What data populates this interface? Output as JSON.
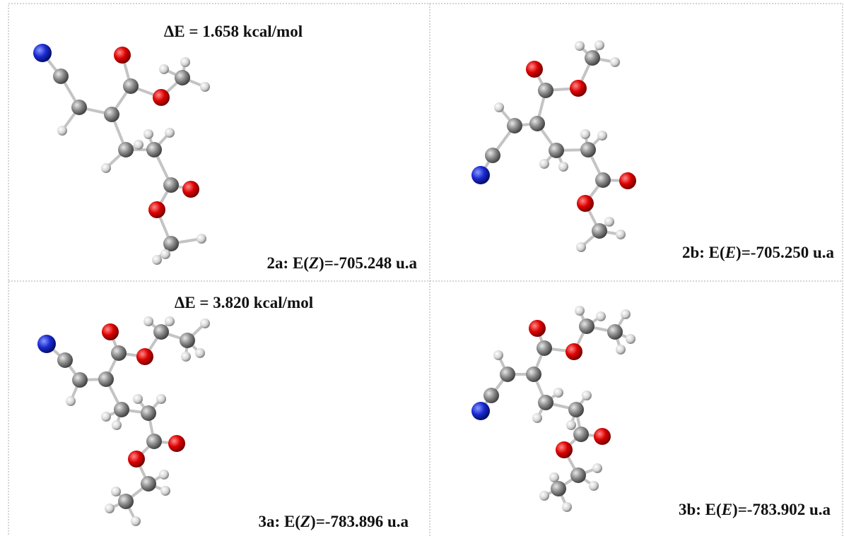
{
  "panels": [
    {
      "delta_e": "ΔE = 1.658 kcal/mol",
      "label": [
        "2a: E(",
        "Z",
        ")=-705.248 u.a"
      ]
    },
    {
      "label": [
        "2b: E(",
        "E",
        ")=-705.250 u.a"
      ]
    },
    {
      "delta_e": "ΔE = 3.820 kcal/mol",
      "label": [
        "3a: E(",
        "Z",
        ")=-783.896 u.a"
      ]
    },
    {
      "label": [
        "3b: E(",
        "E",
        ")=-783.902 u.a"
      ]
    }
  ]
}
